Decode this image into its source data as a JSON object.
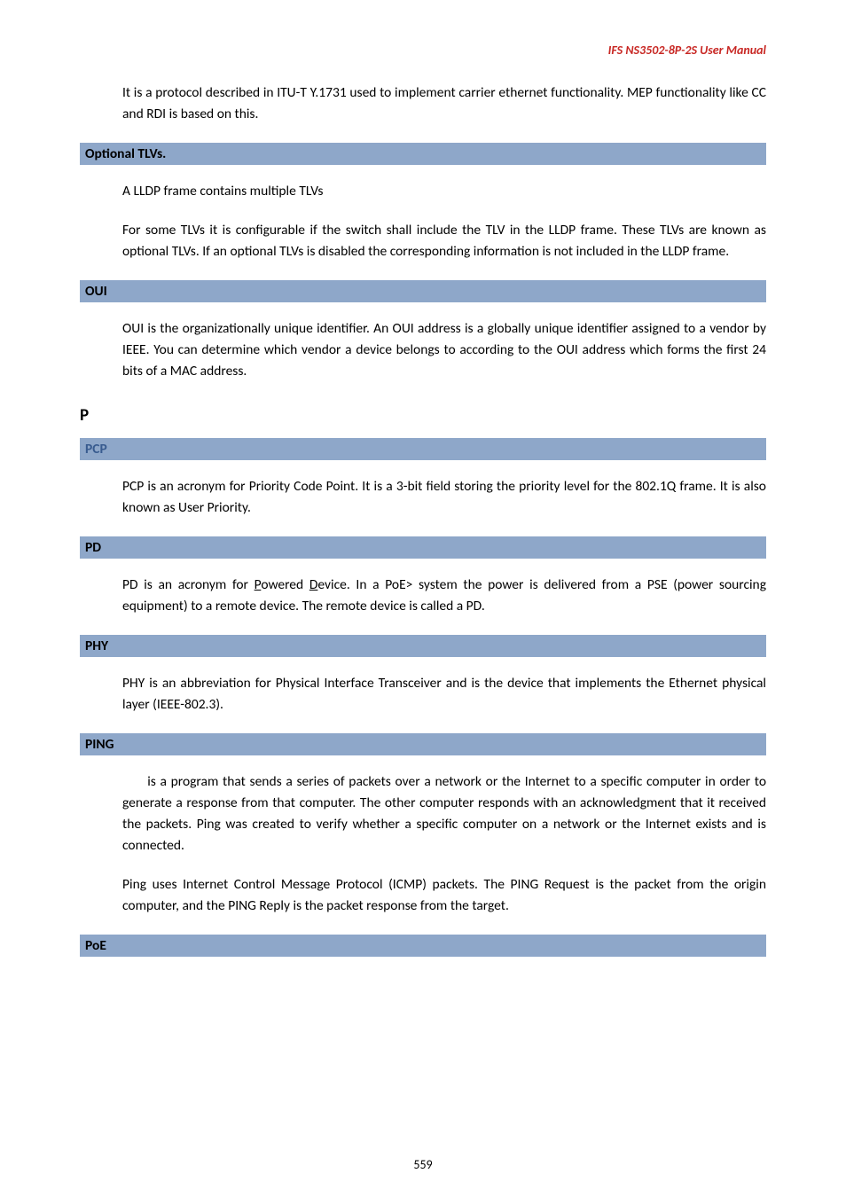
{
  "header": {
    "title": "IFS  NS3502-8P-2S  User  Manual",
    "color": "#c82824"
  },
  "intro": {
    "p1": "It is a protocol described in ITU-T Y.1731 used to implement carrier ethernet functionality. MEP functionality like CC and RDI is based on this."
  },
  "optional_tlvs": {
    "heading": "Optional TLVs.",
    "p1": "A LLDP frame contains multiple TLVs",
    "p2": "For some TLVs it is configurable if the switch shall include the TLV in the LLDP frame. These TLVs are known as optional TLVs. If an optional TLVs is disabled the corresponding information is not included in the LLDP frame."
  },
  "oui": {
    "heading": "OUI",
    "p1": "OUI is the organizationally unique identifier. An OUI address is a globally unique identifier assigned to a vendor by IEEE. You can determine which vendor a device belongs to according to the OUI address which forms the first 24 bits of a MAC address."
  },
  "letter_p": "P",
  "pcp": {
    "heading": "PCP",
    "p1": "PCP is an acronym for Priority Code Point. It is a 3-bit field storing the priority level for the 802.1Q frame. It is also known as User Priority."
  },
  "pd": {
    "heading": "PD",
    "pre": "PD is an acronym for ",
    "u1": "P",
    "mid1": "owered ",
    "u2": "D",
    "post": "evice. In a PoE> system the power is delivered from a PSE (power sourcing equipment) to a remote device. The remote device is called a PD."
  },
  "phy": {
    "heading": "PHY",
    "p1": "PHY is an abbreviation for Physical Interface Transceiver and is the device that implements the Ethernet physical layer (IEEE-802.3)."
  },
  "ping": {
    "heading": "PING",
    "p1": "      is a program that sends a series of packets over a network or the Internet to a specific computer in order to generate a response from that computer. The other computer responds with an acknowledgment that it received the packets. Ping was created to verify whether a specific computer on a network or the Internet exists and is connected.",
    "p2": "Ping uses Internet Control Message Protocol (ICMP) packets. The PING Request is the packet from the origin computer, and the PING Reply is the packet response from the target."
  },
  "poe": {
    "heading": "PoE"
  },
  "footer": {
    "page_number": "559"
  },
  "colors": {
    "bar_bg": "#8ea7c9",
    "pcp_text": "#385b8f",
    "header_text": "#c82824"
  }
}
